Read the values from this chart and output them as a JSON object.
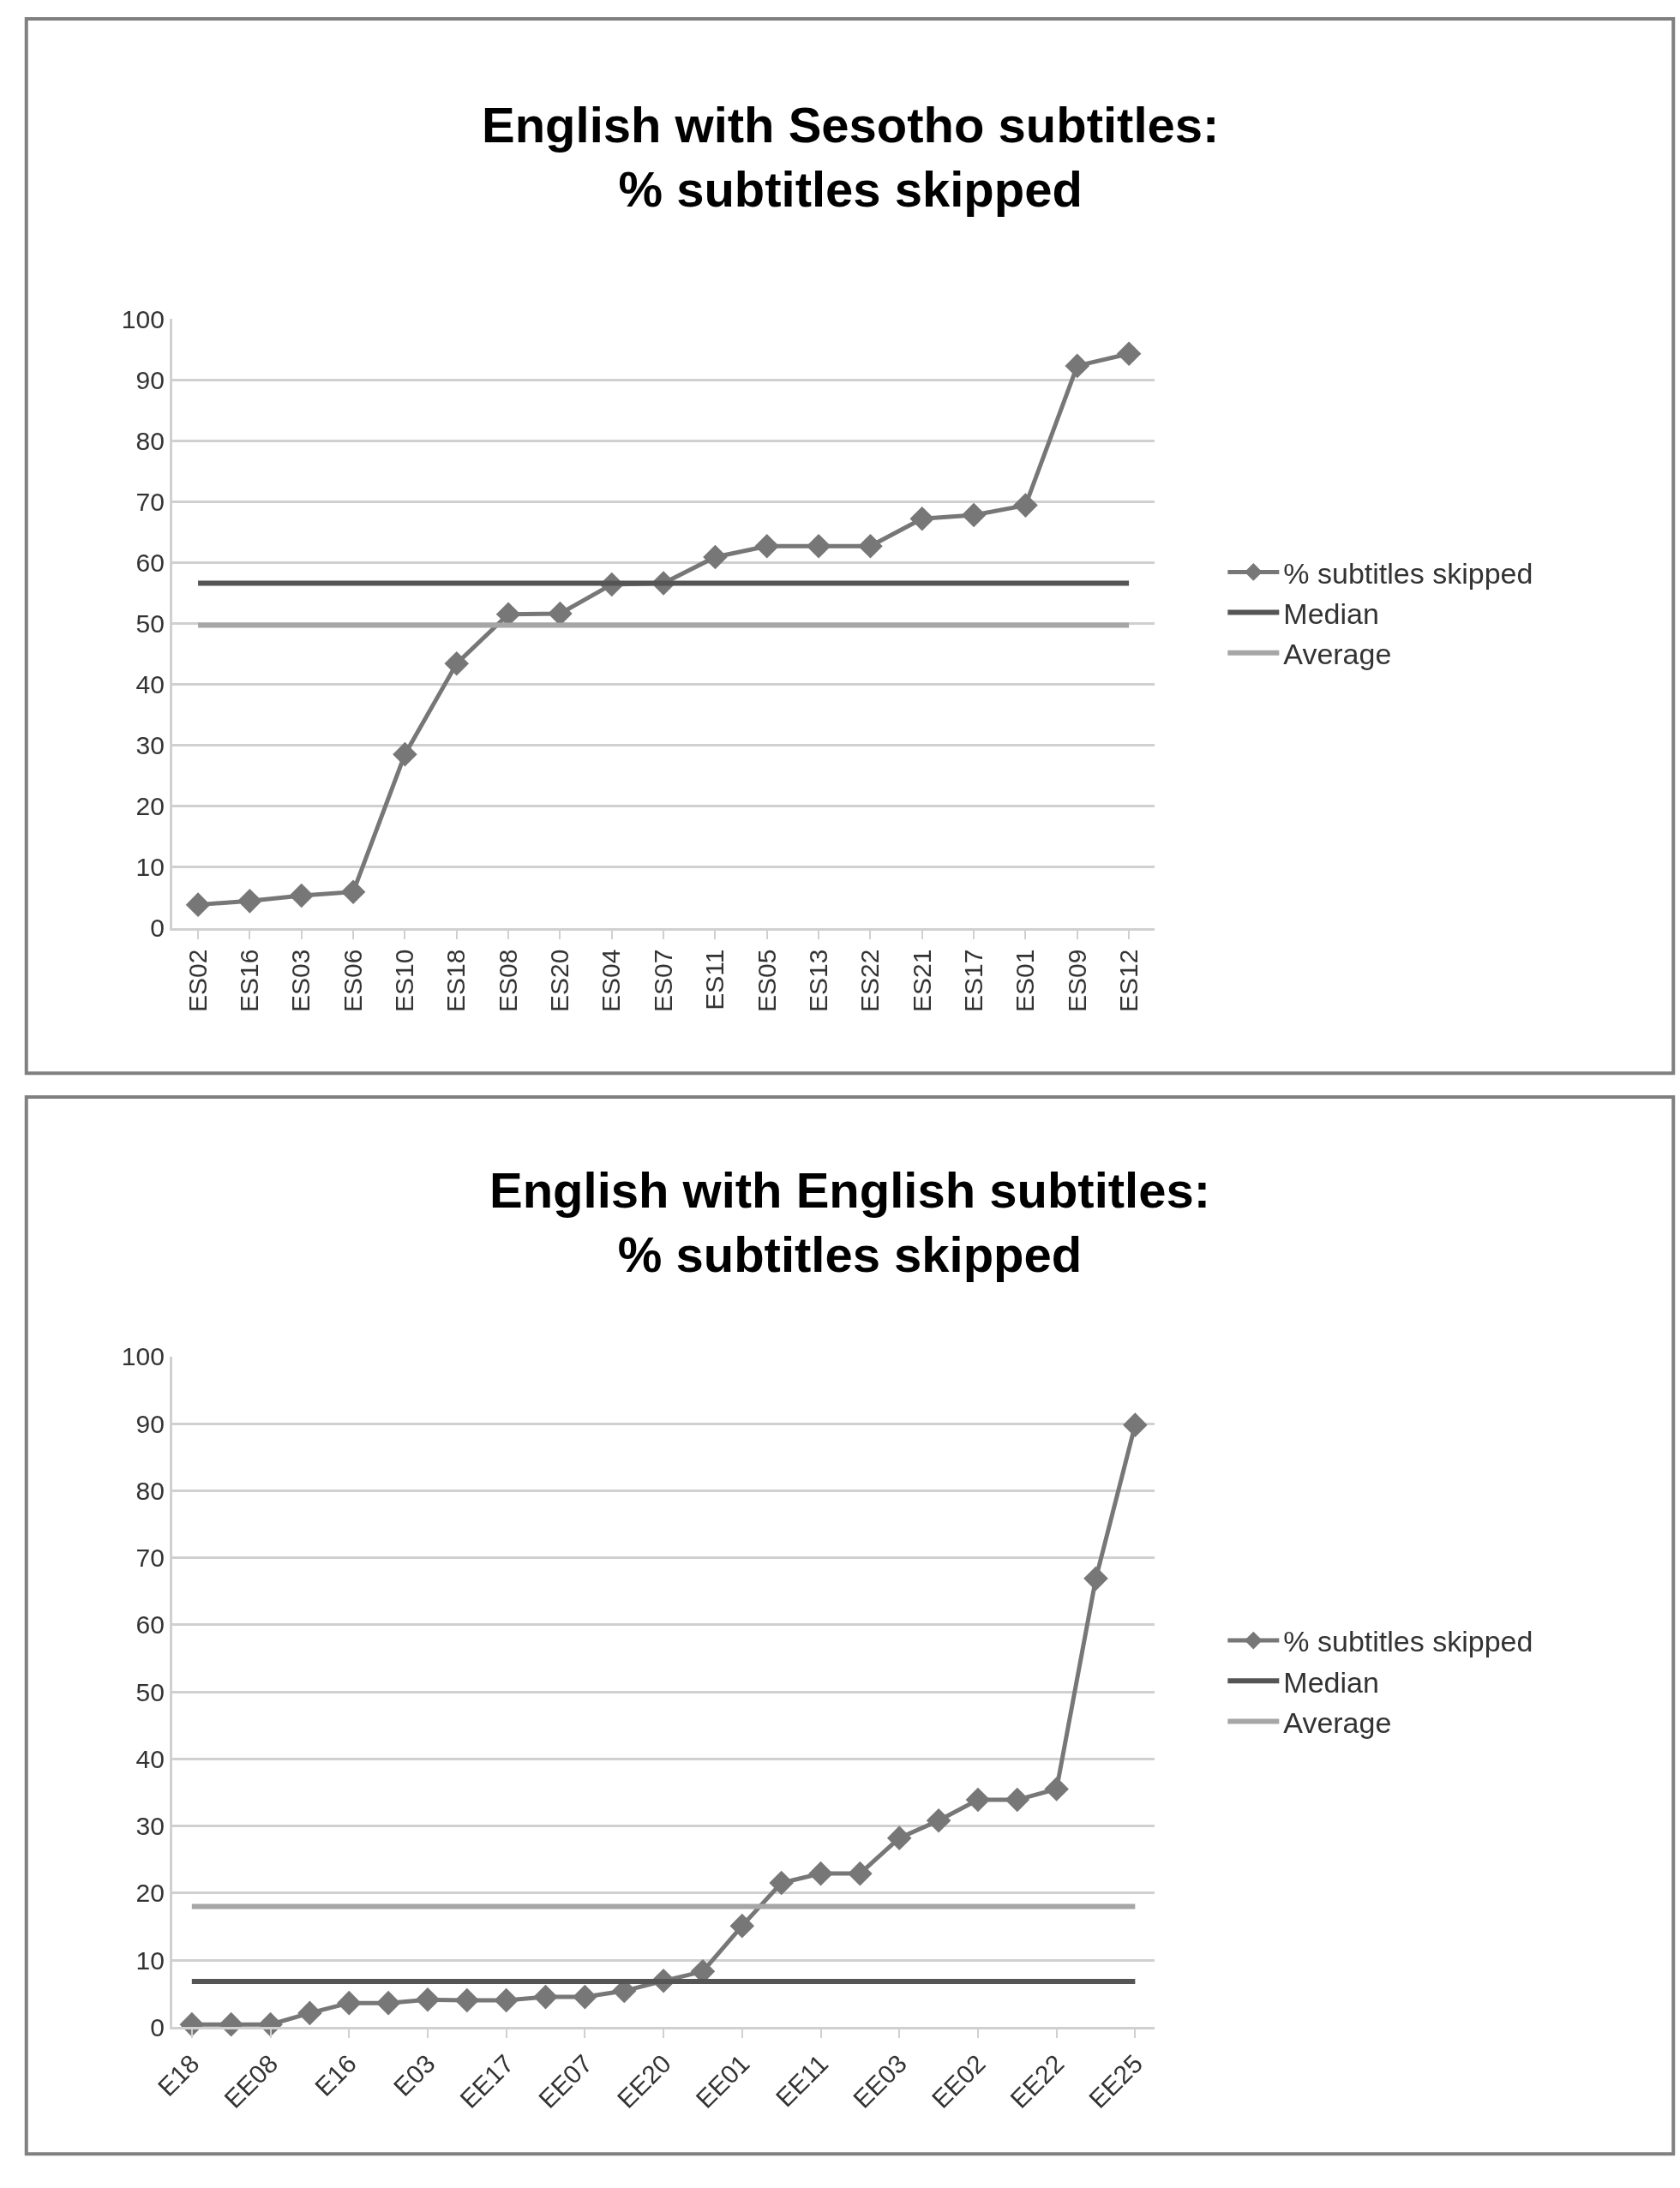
{
  "chart_data": [
    {
      "type": "line",
      "title": "English with Sesotho subtitles:\n% subtitles skipped",
      "categories": [
        "ES02",
        "ES16",
        "ES03",
        "ES06",
        "ES10",
        "ES18",
        "ES08",
        "ES20",
        "ES04",
        "ES07",
        "ES11",
        "ES05",
        "ES13",
        "ES22",
        "ES21",
        "ES17",
        "ES01",
        "ES09",
        "ES12"
      ],
      "series": [
        {
          "name": "% subtitles skipped",
          "color": "#777777",
          "marker": "diamond",
          "values": [
            3.8,
            4.4,
            5.3,
            5.9,
            28.5,
            43.4,
            51.5,
            51.6,
            56.4,
            56.6,
            60.9,
            62.7,
            62.7,
            62.7,
            67.2,
            67.8,
            69.4,
            92.3,
            94.3
          ]
        },
        {
          "name": "Median",
          "color": "#555555",
          "marker": "none",
          "values": [
            56.6,
            56.6,
            56.6,
            56.6,
            56.6,
            56.6,
            56.6,
            56.6,
            56.6,
            56.6,
            56.6,
            56.6,
            56.6,
            56.6,
            56.6,
            56.6,
            56.6,
            56.6,
            56.6
          ]
        },
        {
          "name": "Average",
          "color": "#a6a6a6",
          "marker": "none",
          "values": [
            49.7,
            49.7,
            49.7,
            49.7,
            49.7,
            49.7,
            49.7,
            49.7,
            49.7,
            49.7,
            49.7,
            49.7,
            49.7,
            49.7,
            49.7,
            49.7,
            49.7,
            49.7,
            49.7
          ]
        }
      ],
      "ylim": [
        0,
        100
      ],
      "yticks": [
        0,
        10,
        20,
        30,
        40,
        50,
        60,
        70,
        80,
        90,
        100
      ],
      "grid": "y",
      "legend": "right"
    },
    {
      "type": "line",
      "title": "English with English subtitles:\n% subtitles skipped",
      "categories": [
        "E18",
        null,
        "EE08",
        null,
        "E16",
        null,
        "E03",
        null,
        "EE17",
        null,
        "EE07",
        null,
        "EE20",
        null,
        "EE01",
        null,
        "EE11",
        null,
        "EE03",
        null,
        "EE02",
        null,
        "EE22",
        null,
        "EE25"
      ],
      "series": [
        {
          "name": "% subtitles skipped",
          "color": "#777777",
          "marker": "diamond",
          "values": [
            0.4,
            0.4,
            0.4,
            2.1,
            3.6,
            3.6,
            4.1,
            4.0,
            4.0,
            4.5,
            4.5,
            5.4,
            6.9,
            8.3,
            15.1,
            21.5,
            22.9,
            22.9,
            28.2,
            30.8,
            33.9,
            33.9,
            35.5,
            66.9,
            89.8
          ]
        },
        {
          "name": "Median",
          "color": "#555555",
          "marker": "none",
          "values": [
            6.8,
            6.8,
            6.8,
            6.8,
            6.8,
            6.8,
            6.8,
            6.8,
            6.8,
            6.8,
            6.8,
            6.8,
            6.8,
            6.8,
            6.8,
            6.8,
            6.8,
            6.8,
            6.8,
            6.8,
            6.8,
            6.8,
            6.8,
            6.8,
            6.8
          ]
        },
        {
          "name": "Average",
          "color": "#a6a6a6",
          "marker": "none",
          "values": [
            18,
            18,
            18,
            18,
            18,
            18,
            18,
            18,
            18,
            18,
            18,
            18,
            18,
            18,
            18,
            18,
            18,
            18,
            18,
            18,
            18,
            18,
            18,
            18,
            18
          ]
        }
      ],
      "ylim": [
        0,
        100
      ],
      "yticks": [
        0,
        10,
        20,
        30,
        40,
        50,
        60,
        70,
        80,
        90,
        100
      ],
      "grid": "y",
      "legend": "right"
    }
  ]
}
